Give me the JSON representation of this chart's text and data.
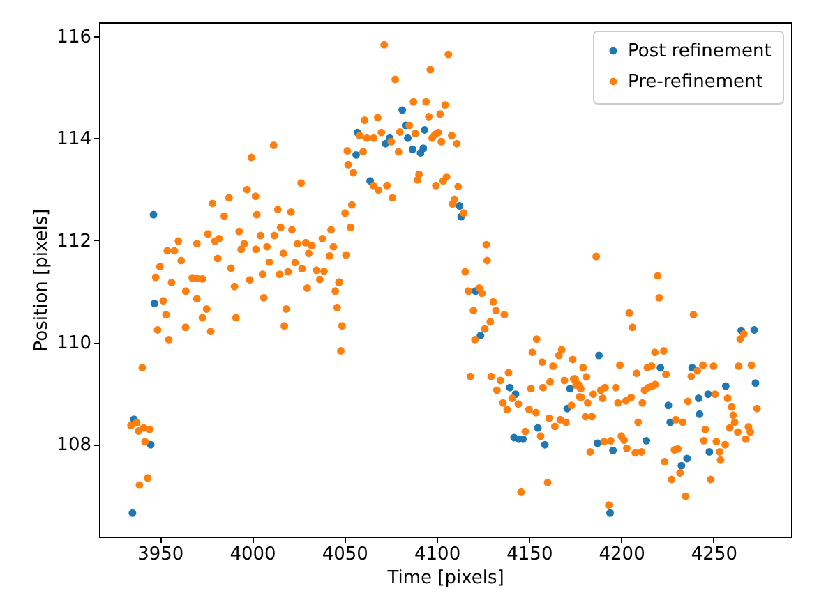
{
  "chart_data": {
    "type": "scatter",
    "xlabel": "Time [pixels]",
    "ylabel": "Position [pixels]",
    "xlim": [
      3917,
      4292
    ],
    "ylim": [
      106.19,
      116.27
    ],
    "xticks": [
      3950,
      4000,
      4050,
      4100,
      4150,
      4200,
      4250
    ],
    "yticks": [
      108,
      110,
      112,
      114,
      116
    ],
    "grid": false,
    "legend": "top right",
    "marker": "circle",
    "series": [
      {
        "name": "Post refinement",
        "color": "#1f77b4",
        "x": [
          3946.5,
          3947,
          3935.9,
          3945,
          3935.1,
          4081.3,
          4057,
          4083.1,
          4074.5,
          4072.2,
          4084.3,
          4093.4,
          4086.9,
          4091.2,
          4092.7,
          4056.3,
          4063.9,
          4112.4,
          4113.2,
          4123.7,
          4139.6,
          4142.7,
          4141.9,
          4144.4,
          4146.7,
          4154.8,
          4158.6,
          4172.2,
          4170.7,
          4121,
          4187.9,
          4221.2,
          4238.4,
          4241.9,
          4247,
          4256.6,
          4225.5,
          4226.5,
          4242.4,
          4247.7,
          4213.6,
          4195.5,
          4187.1,
          4193.9,
          4232.6,
          4235.6,
          4265,
          4272,
          4272.7
        ],
        "values": [
          112.5,
          110.76,
          108.49,
          107.99,
          106.65,
          114.55,
          114.11,
          114.25,
          114,
          113.89,
          114,
          114.16,
          113.78,
          113.71,
          113.8,
          113.67,
          113.16,
          112.67,
          112.46,
          110.13,
          109.11,
          108.98,
          108.13,
          108.1,
          108.1,
          108.32,
          107.99,
          109.09,
          108.7,
          111,
          109.74,
          109.5,
          109.5,
          108.9,
          108.98,
          109.14,
          108.76,
          108.43,
          108.59,
          107.85,
          108.07,
          107.88,
          108.02,
          106.65,
          107.58,
          107.72,
          110.23,
          110.24,
          109.2
        ]
      },
      {
        "name": "Pre-refinement",
        "color": "#ff7f0e",
        "x": [
          4011.6,
          3999.5,
          4051.5,
          4052,
          4026.5,
          3997.2,
          4001.8,
          3978.5,
          3987.4,
          3984.8,
          4002.5,
          4013.9,
          4021,
          4050.3,
          3976,
          3992.9,
          3960,
          3970,
          4015.4,
          4021.5,
          4042.7,
          4004.5,
          4012,
          3982,
          3979.8,
          3995.7,
          4008,
          4024.5,
          4029,
          4038,
          4032.3,
          4044,
          3994,
          4002,
          4016.9,
          3954,
          3957.8,
          3961.5,
          3950,
          3981.3,
          3988.5,
          4009.3,
          4023.2,
          4030.6,
          4034.8,
          4041.9,
          4050.8,
          4027,
          4038.9,
          3947.7,
          3970,
          3998.7,
          4005.6,
          4014.9,
          4019.4,
          4047.2,
          4036.6,
          3956.3,
          3951.8,
          3953.3,
          3948.7,
          3954.8,
          3964,
          3967.5,
          3973,
          3970,
          3975.3,
          3973,
          3963.9,
          3977.5,
          3990.4,
          3991.2,
          4006.3,
          4018.4,
          4017.4,
          4029.8,
          4045,
          4046,
          4047,
          4048.7,
          4048,
          3940.4,
          3934.3,
          3937.4,
          3938.4,
          3941.2,
          3944.4,
          3941.9,
          3943.4,
          3938.9,
          4071.5,
          4106.3,
          4096.5,
          4077.5,
          4087.4,
          4094.2,
          4104.5,
          4101.8,
          4095.7,
          4060.9,
          4068,
          4058.3,
          4062.1,
          4065.8,
          4070,
          4075.3,
          4080,
          4085.1,
          4088.4,
          4097.5,
          4099,
          4100.8,
          4102.5,
          4108.1,
          4110.9,
          4060.1,
          4054.8,
          4079.3,
          4090.4,
          4089.6,
          4099.5,
          4103.5,
          4105.3,
          4111.6,
          4065.7,
          4068.4,
          4073,
          4076,
          4109.6,
          4108.6,
          4114.6,
          4054,
          4053.3,
          4126.8,
          4127.3,
          4115.4,
          4117.2,
          4123,
          4124.5,
          4119.9,
          4130.6,
          4132.1,
          4136.6,
          4129,
          4126,
          4120.7,
          4118.2,
          4129.5,
          4134.5,
          4138.9,
          4132.6,
          4140.9,
          4135.9,
          4138.1,
          4144.2,
          4148,
          4150,
          4153.8,
          4156.3,
          4145.7,
          4160.1,
          4151,
          4151.8,
          4154.1,
          4157.1,
          4157.6,
          4161.4,
          4163,
          4166.2,
          4167.7,
          4173.7,
          4179.3,
          4169.2,
          4175,
          4176.8,
          4178.3,
          4173,
          4160.9,
          4164,
          4166.9,
          4170,
          4186.4,
          4219.7,
          4220.5,
          4204.3,
          4206.1,
          4239.1,
          4174.2,
          4175.5,
          4178,
          4181.1,
          4177.5,
          4181.8,
          4184.8,
          4188.9,
          4191.2,
          4189.9,
          4197,
          4199.2,
          4198.2,
          4202.5,
          4205.3,
          4208.3,
          4211.4,
          4212.6,
          4214.6,
          4216.7,
          4218.4,
          4214.1,
          4216.4,
          4218.2,
          4223,
          4224.2,
          4180.6,
          4184.1,
          4183.1,
          4209.1,
          4190.7,
          4194.2,
          4200,
          4201.5,
          4203,
          4207.6,
          4210.9,
          4193.2,
          4223.5,
          4227.3,
          4228.8,
          4230.6,
          4229.5,
          4233.3,
          4231.8,
          4234.8,
          4236.1,
          4237.9,
          4241.2,
          4244.2,
          4250,
          4245.5,
          4244.7,
          4250.8,
          4251.5,
          4253.3,
          4253.8,
          4256.3,
          4248.5,
          4257.6,
          4259.8,
          4260.6,
          4261.4,
          4258.8,
          4263.1,
          4267.4,
          4268.9,
          4269.9,
          4263.6,
          4270.5,
          4273.5,
          4264.4,
          4266.4
        ],
        "values": [
          113.86,
          113.62,
          113.75,
          113.48,
          113.12,
          112.99,
          112.86,
          112.72,
          112.83,
          112.47,
          112.5,
          112.6,
          112.55,
          112.53,
          112.12,
          112.17,
          111.98,
          111.93,
          112.25,
          112.2,
          112.2,
          112.09,
          112.09,
          112.03,
          111.98,
          111.93,
          111.87,
          111.93,
          111.95,
          112.03,
          111.89,
          111.87,
          111.82,
          111.82,
          111.74,
          111.79,
          111.79,
          111.6,
          111.48,
          111.64,
          111.45,
          111.57,
          111.56,
          111.74,
          111.41,
          111.69,
          111.71,
          111.44,
          111.39,
          111.27,
          111.25,
          111.22,
          111.33,
          111.33,
          111.38,
          111.18,
          111.23,
          111.17,
          110.81,
          110.54,
          110.24,
          110.05,
          111,
          111.26,
          111.24,
          110.85,
          110.65,
          110.48,
          110.29,
          110.21,
          111.09,
          110.48,
          110.87,
          110.65,
          110.32,
          111.06,
          111,
          110.68,
          111.17,
          110.32,
          109.83,
          109.5,
          108.37,
          108.42,
          108.26,
          108.32,
          108.29,
          108.05,
          107.34,
          107.2,
          115.83,
          115.64,
          115.34,
          115.15,
          114.71,
          114.71,
          114.65,
          114.47,
          114.42,
          114.35,
          114.4,
          114.05,
          114,
          114,
          114.11,
          113.93,
          114.12,
          114.25,
          114.09,
          114,
          114.07,
          114.11,
          113.93,
          114.05,
          113.89,
          113.73,
          113.32,
          113.73,
          113.29,
          113.18,
          113.07,
          113.16,
          113.24,
          113.05,
          113.07,
          112.98,
          113.07,
          112.83,
          112.8,
          112.71,
          112.53,
          112.69,
          112.25,
          111.91,
          111.6,
          111.38,
          111,
          111.06,
          110.96,
          110.62,
          110.79,
          110.62,
          110.54,
          110.4,
          110.26,
          110.05,
          109.33,
          109.33,
          109.25,
          109.4,
          109.06,
          108.9,
          108.81,
          108.68,
          108.79,
          108.25,
          108.68,
          108.62,
          108.16,
          107.06,
          107.25,
          109.09,
          109.8,
          110.06,
          109.61,
          109.11,
          109.22,
          109.53,
          109.74,
          109.85,
          109.66,
          109.5,
          109.25,
          109.28,
          109.17,
          108.92,
          108.76,
          108.51,
          108.35,
          108.48,
          108.43,
          111.68,
          111.3,
          110.87,
          110.57,
          110.29,
          110.54,
          109.28,
          109.16,
          109.09,
          109.32,
          108.93,
          108.81,
          108.98,
          109.06,
          109.11,
          108.9,
          109.11,
          109.55,
          108.81,
          108.85,
          108.92,
          109.39,
          108.81,
          109.06,
          109.11,
          109.14,
          109.17,
          109.5,
          109.53,
          109.8,
          109.83,
          109.37,
          108.54,
          108.54,
          107.85,
          108.43,
          108.05,
          108.07,
          108.16,
          108.08,
          107.92,
          107.83,
          107.85,
          106.81,
          107.66,
          107.31,
          107.89,
          107.91,
          108.48,
          108.43,
          107.44,
          106.98,
          108.84,
          109.33,
          109.44,
          109.55,
          109.53,
          108.29,
          108.07,
          108.98,
          108.05,
          107.85,
          107.69,
          107.99,
          107.31,
          108.9,
          108.73,
          108.57,
          108.43,
          108.32,
          108.24,
          108.1,
          108.34,
          108.24,
          109.53,
          109.55,
          108.7,
          110.06,
          110.16
        ]
      }
    ]
  }
}
